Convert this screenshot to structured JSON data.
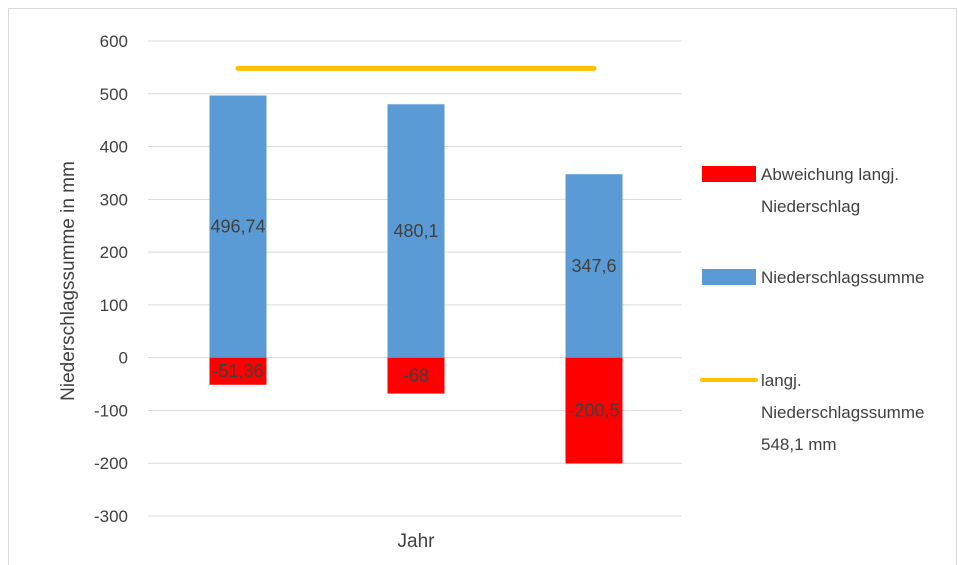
{
  "chart_data": {
    "type": "bar",
    "title": "",
    "xlabel": "Jahr",
    "ylabel": "Niederschlagssumme in mm",
    "ylim": [
      -300,
      600
    ],
    "yticks": [
      600,
      500,
      400,
      300,
      200,
      100,
      0,
      -100,
      -200,
      -300
    ],
    "grid": true,
    "legend_position": "right",
    "series": [
      {
        "key": "deviation",
        "name": "Abweichung langj. Niederschlag",
        "kind": "bar",
        "color": "#ff0000",
        "values": [
          -51.36,
          -68,
          -200.5
        ],
        "labels": [
          "-51,36",
          "-68",
          "-200,5"
        ]
      },
      {
        "key": "sum",
        "name": "Niederschlagssumme",
        "kind": "bar",
        "color": "#5b9bd5",
        "values": [
          496.74,
          480.1,
          347.6
        ],
        "labels": [
          "496,74",
          "480,1",
          "347,6"
        ]
      },
      {
        "key": "longterm",
        "name": "langj. Niederschlagssumme 548,1 mm",
        "kind": "line",
        "color": "#ffc000",
        "value": 548.1
      }
    ],
    "legend": [
      {
        "series": "deviation",
        "lines": [
          "Abweichung langj.",
          "Niederschlag"
        ]
      },
      {
        "series": "sum",
        "lines": [
          "Niederschlagssumme"
        ]
      },
      {
        "series": "longterm",
        "lines": [
          "langj.",
          "Niederschlagssumme",
          "548,1 mm"
        ]
      }
    ]
  }
}
